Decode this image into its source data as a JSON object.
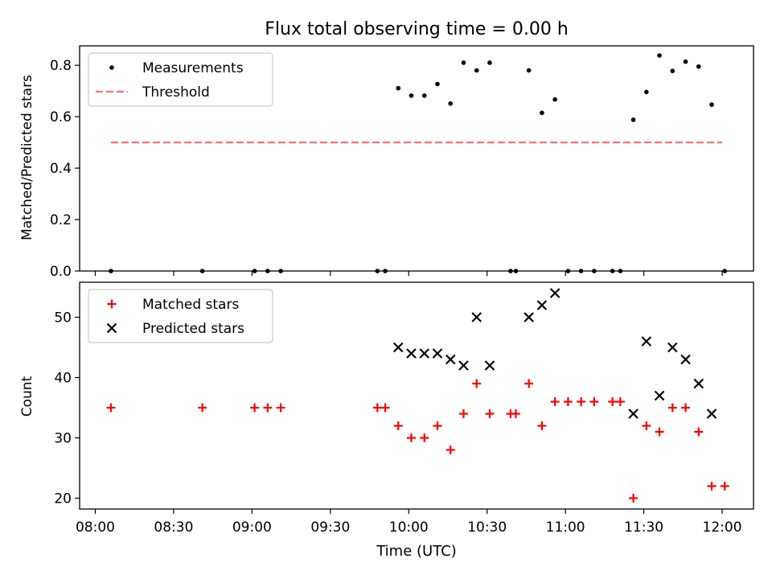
{
  "chart_data": {
    "type": "scatter",
    "title": "Flux total observing time = 0.00 h",
    "xlabel": "Time (UTC)",
    "x_ticks": [
      "08:00",
      "08:30",
      "09:00",
      "09:30",
      "10:00",
      "10:30",
      "11:00",
      "11:30",
      "12:00"
    ],
    "xlim": [
      "07:54",
      "12:12"
    ],
    "panels": [
      {
        "ylabel": "Matched/Predicted stars",
        "ylim": [
          0,
          0.8756
        ],
        "y_ticks": [
          "0.0",
          "0.2",
          "0.4",
          "0.6",
          "0.8"
        ],
        "legend_position": "top-left",
        "series": [
          {
            "name": "Measurements",
            "marker": "dot",
            "color": "#000000",
            "points": [
              [
                "08:06",
                0.0
              ],
              [
                "08:41",
                0.0
              ],
              [
                "09:01",
                0.0
              ],
              [
                "09:06",
                0.0
              ],
              [
                "09:11",
                0.0
              ],
              [
                "09:48",
                0.0
              ],
              [
                "09:51",
                0.0
              ],
              [
                "09:56",
                0.711
              ],
              [
                "10:01",
                0.682
              ],
              [
                "10:06",
                0.682
              ],
              [
                "10:11",
                0.727
              ],
              [
                "10:16",
                0.651
              ],
              [
                "10:21",
                0.81
              ],
              [
                "10:26",
                0.78
              ],
              [
                "10:31",
                0.81
              ],
              [
                "10:39",
                0.0
              ],
              [
                "10:41",
                0.0
              ],
              [
                "10:46",
                0.78
              ],
              [
                "10:51",
                0.615
              ],
              [
                "10:56",
                0.667
              ],
              [
                "11:01",
                0.0
              ],
              [
                "11:06",
                0.0
              ],
              [
                "11:11",
                0.0
              ],
              [
                "11:18",
                0.0
              ],
              [
                "11:21",
                0.0
              ],
              [
                "11:26",
                0.588
              ],
              [
                "11:31",
                0.696
              ],
              [
                "11:36",
                0.838
              ],
              [
                "11:41",
                0.778
              ],
              [
                "11:46",
                0.814
              ],
              [
                "11:51",
                0.795
              ],
              [
                "11:56",
                0.647
              ],
              [
                "12:01",
                0.0
              ]
            ]
          },
          {
            "name": "Threshold",
            "marker": "dashed-line",
            "color": "#ff7070",
            "points": [
              [
                "08:06",
                0.5
              ],
              [
                "12:00",
                0.5
              ]
            ]
          }
        ]
      },
      {
        "ylabel": "Count",
        "ylim": [
          18.2,
          55.8
        ],
        "y_ticks": [
          "20",
          "30",
          "40",
          "50"
        ],
        "legend_position": "top-left",
        "series": [
          {
            "name": "Matched stars",
            "marker": "plus",
            "color": "#ff0000",
            "points": [
              [
                "08:06",
                35
              ],
              [
                "08:41",
                35
              ],
              [
                "09:01",
                35
              ],
              [
                "09:06",
                35
              ],
              [
                "09:11",
                35
              ],
              [
                "09:48",
                35
              ],
              [
                "09:51",
                35
              ],
              [
                "09:56",
                32
              ],
              [
                "10:01",
                30
              ],
              [
                "10:06",
                30
              ],
              [
                "10:11",
                32
              ],
              [
                "10:16",
                28
              ],
              [
                "10:21",
                34
              ],
              [
                "10:26",
                39
              ],
              [
                "10:31",
                34
              ],
              [
                "10:39",
                34
              ],
              [
                "10:41",
                34
              ],
              [
                "10:46",
                39
              ],
              [
                "10:51",
                32
              ],
              [
                "10:56",
                36
              ],
              [
                "11:01",
                36
              ],
              [
                "11:06",
                36
              ],
              [
                "11:11",
                36
              ],
              [
                "11:18",
                36
              ],
              [
                "11:21",
                36
              ],
              [
                "11:26",
                20
              ],
              [
                "11:31",
                32
              ],
              [
                "11:36",
                31
              ],
              [
                "11:41",
                35
              ],
              [
                "11:46",
                35
              ],
              [
                "11:51",
                31
              ],
              [
                "11:56",
                22
              ],
              [
                "12:01",
                22
              ]
            ]
          },
          {
            "name": "Predicted stars",
            "marker": "x",
            "color": "#000000",
            "points": [
              [
                "09:56",
                45
              ],
              [
                "10:01",
                44
              ],
              [
                "10:06",
                44
              ],
              [
                "10:11",
                44
              ],
              [
                "10:16",
                43
              ],
              [
                "10:21",
                42
              ],
              [
                "10:26",
                50
              ],
              [
                "10:31",
                42
              ],
              [
                "10:46",
                50
              ],
              [
                "10:51",
                52
              ],
              [
                "10:56",
                54
              ],
              [
                "11:26",
                34
              ],
              [
                "11:31",
                46
              ],
              [
                "11:36",
                37
              ],
              [
                "11:41",
                45
              ],
              [
                "11:46",
                43
              ],
              [
                "11:51",
                39
              ],
              [
                "11:56",
                34
              ]
            ]
          }
        ]
      }
    ]
  }
}
